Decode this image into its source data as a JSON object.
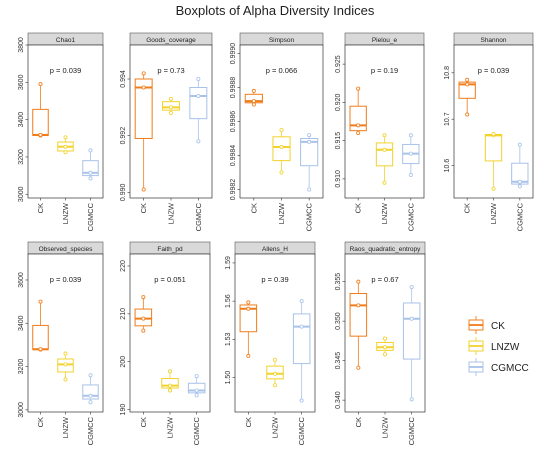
{
  "title": "Boxplots of Alpha Diversity Indices",
  "legend": {
    "placement": "right",
    "items": [
      {
        "label": "CK",
        "color": "#F07C1A"
      },
      {
        "label": "LNZW",
        "color": "#F2D22C"
      },
      {
        "label": "CGMCC",
        "color": "#A8C2EA"
      }
    ]
  },
  "chart_data": [
    {
      "type": "box",
      "title": "Chao1",
      "pvalue": "p = 0.039",
      "categories": [
        "CK",
        "LNZW",
        "CGMCC"
      ],
      "ylim": [
        2980,
        3800
      ],
      "yticks": [
        3000,
        3200,
        3400,
        3600,
        3800
      ],
      "tick_labels": [
        "3000",
        "3200",
        "3400",
        "3600",
        "3800"
      ],
      "boxes": [
        {
          "min": 3315,
          "q1": 3315,
          "median": 3318,
          "q3": 3455,
          "max": 3590,
          "points": [
            3315,
            3318,
            3590
          ]
        },
        {
          "min": 3225,
          "q1": 3232,
          "median": 3255,
          "q3": 3280,
          "max": 3305,
          "points": [
            3225,
            3255,
            3305
          ]
        },
        {
          "min": 3085,
          "q1": 3100,
          "median": 3115,
          "q3": 3180,
          "max": 3235,
          "points": [
            3085,
            3115,
            3235
          ]
        }
      ]
    },
    {
      "type": "box",
      "title": "Goods_coverage",
      "pvalue": "p = 0.73",
      "categories": [
        "CK",
        "LNZW",
        "CGMCC"
      ],
      "ylim": [
        0.9898,
        0.9952
      ],
      "yticks": [
        0.99,
        0.992,
        0.994
      ],
      "tick_labels": [
        "0.990",
        "0.992",
        "0.994"
      ],
      "boxes": [
        {
          "min": 0.9901,
          "q1": 0.9919,
          "median": 0.9937,
          "q3": 0.994,
          "max": 0.9942,
          "points": [
            0.9901,
            0.9937,
            0.9942
          ]
        },
        {
          "min": 0.9928,
          "q1": 0.9929,
          "median": 0.993,
          "q3": 0.9932,
          "max": 0.9933,
          "points": [
            0.9928,
            0.993,
            0.9933
          ]
        },
        {
          "min": 0.9918,
          "q1": 0.9926,
          "median": 0.9934,
          "q3": 0.9937,
          "max": 0.994,
          "points": [
            0.9918,
            0.9934,
            0.994
          ]
        }
      ]
    },
    {
      "type": "box",
      "title": "Simpson",
      "pvalue": "p = 0.066",
      "categories": [
        "CK",
        "LNZW",
        "CGMCC"
      ],
      "ylim": [
        0.99815,
        0.99905
      ],
      "yticks": [
        0.9982,
        0.9984,
        0.9986,
        0.9988,
        0.999
      ],
      "tick_labels": [
        "0.9982",
        "0.9984",
        "0.9986",
        "0.9988",
        "0.9990"
      ],
      "boxes": [
        {
          "min": 0.9987,
          "q1": 0.99871,
          "median": 0.99872,
          "q3": 0.99876,
          "max": 0.99878,
          "points": [
            0.9987,
            0.99872,
            0.99878
          ]
        },
        {
          "min": 0.9983,
          "q1": 0.99837,
          "median": 0.99845,
          "q3": 0.99851,
          "max": 0.99855,
          "points": [
            0.9983,
            0.99845,
            0.99855
          ]
        },
        {
          "min": 0.9982,
          "q1": 0.99834,
          "median": 0.99848,
          "q3": 0.9985,
          "max": 0.99852,
          "points": [
            0.9982,
            0.99848,
            0.99852
          ]
        }
      ]
    },
    {
      "type": "box",
      "title": "Pielou_e",
      "pvalue": "p = 0.19",
      "categories": [
        "CK",
        "LNZW",
        "CGMCC"
      ],
      "ylim": [
        0.9075,
        0.9275
      ],
      "yticks": [
        0.91,
        0.915,
        0.92,
        0.925
      ],
      "tick_labels": [
        "0.910",
        "0.915",
        "0.920",
        "0.925"
      ],
      "boxes": [
        {
          "min": 0.916,
          "q1": 0.9163,
          "median": 0.917,
          "q3": 0.9195,
          "max": 0.9218,
          "points": [
            0.916,
            0.917,
            0.9218
          ]
        },
        {
          "min": 0.9095,
          "q1": 0.9117,
          "median": 0.9138,
          "q3": 0.9147,
          "max": 0.9157,
          "points": [
            0.9095,
            0.9138,
            0.9157
          ]
        },
        {
          "min": 0.9105,
          "q1": 0.912,
          "median": 0.9133,
          "q3": 0.9145,
          "max": 0.9157,
          "points": [
            0.9105,
            0.9133,
            0.9157
          ]
        }
      ]
    },
    {
      "type": "box",
      "title": "Shannon",
      "pvalue": "p = 0.039",
      "categories": [
        "CK",
        "LNZW",
        "CGMCC"
      ],
      "ylim": [
        10.53,
        10.86
      ],
      "yticks": [
        10.6,
        10.7,
        10.8
      ],
      "tick_labels": [
        "10.6",
        "10.7",
        "10.8"
      ],
      "boxes": [
        {
          "min": 10.71,
          "q1": 10.745,
          "median": 10.775,
          "q3": 10.78,
          "max": 10.785,
          "points": [
            10.71,
            10.775,
            10.785
          ]
        },
        {
          "min": 10.55,
          "q1": 10.61,
          "median": 10.665,
          "q3": 10.667,
          "max": 10.668,
          "points": [
            10.55,
            10.665,
            10.668
          ]
        },
        {
          "min": 10.555,
          "q1": 10.56,
          "median": 10.565,
          "q3": 10.605,
          "max": 10.645,
          "points": [
            10.555,
            10.565,
            10.645
          ]
        }
      ]
    },
    {
      "type": "box",
      "title": "Observed_species",
      "pvalue": "p = 0.039",
      "categories": [
        "CK",
        "LNZW",
        "CGMCC"
      ],
      "ylim": [
        2990,
        3720
      ],
      "yticks": [
        3000,
        3200,
        3400,
        3600
      ],
      "tick_labels": [
        "3000",
        "3200",
        "3400",
        "3600"
      ],
      "boxes": [
        {
          "min": 3278,
          "q1": 3278,
          "median": 3280,
          "q3": 3390,
          "max": 3500,
          "points": [
            3278,
            3280,
            3500
          ]
        },
        {
          "min": 3140,
          "q1": 3175,
          "median": 3210,
          "q3": 3235,
          "max": 3260,
          "points": [
            3140,
            3210,
            3260
          ]
        },
        {
          "min": 3035,
          "q1": 3050,
          "median": 3065,
          "q3": 3115,
          "max": 3160,
          "points": [
            3035,
            3065,
            3160
          ]
        }
      ]
    },
    {
      "type": "box",
      "title": "Faith_pd",
      "pvalue": "p = 0.051",
      "categories": [
        "CK",
        "LNZW",
        "CGMCC"
      ],
      "ylim": [
        189.5,
        222.5
      ],
      "yticks": [
        190,
        200,
        210,
        220
      ],
      "tick_labels": [
        "190",
        "200",
        "210",
        "220"
      ],
      "boxes": [
        {
          "min": 206.5,
          "q1": 207.5,
          "median": 209.0,
          "q3": 211.0,
          "max": 213.5,
          "points": [
            206.5,
            209.0,
            213.5
          ]
        },
        {
          "min": 194.0,
          "q1": 194.5,
          "median": 195.0,
          "q3": 196.5,
          "max": 198.0,
          "points": [
            194.0,
            195.0,
            198.0
          ]
        },
        {
          "min": 193.0,
          "q1": 193.5,
          "median": 194.0,
          "q3": 195.5,
          "max": 197.0,
          "points": [
            193.0,
            194.0,
            197.0
          ]
        }
      ]
    },
    {
      "type": "box",
      "title": "Allens_H",
      "pvalue": "p = 0.39",
      "categories": [
        "CK",
        "LNZW",
        "CGMCC"
      ],
      "ylim": [
        1.473,
        1.597
      ],
      "yticks": [
        1.5,
        1.53,
        1.56,
        1.59
      ],
      "tick_labels": [
        "1.50",
        "1.53",
        "1.56",
        "1.59"
      ],
      "boxes": [
        {
          "min": 1.517,
          "q1": 1.536,
          "median": 1.554,
          "q3": 1.557,
          "max": 1.559,
          "points": [
            1.517,
            1.554,
            1.559
          ]
        },
        {
          "min": 1.494,
          "q1": 1.499,
          "median": 1.503,
          "q3": 1.509,
          "max": 1.514,
          "points": [
            1.494,
            1.503,
            1.514
          ]
        },
        {
          "min": 1.482,
          "q1": 1.511,
          "median": 1.54,
          "q3": 1.55,
          "max": 1.56,
          "points": [
            1.482,
            1.54,
            1.56
          ]
        }
      ]
    },
    {
      "type": "box",
      "title": "Raos_quadratic_entropy",
      "pvalue": "p = 0.67",
      "categories": [
        "CK",
        "LNZW",
        "CGMCC"
      ],
      "ylim": [
        0.3385,
        0.3585
      ],
      "yticks": [
        0.34,
        0.345,
        0.35,
        0.355
      ],
      "tick_labels": [
        "0.340",
        "0.345",
        "0.350",
        "0.355"
      ],
      "boxes": [
        {
          "min": 0.3441,
          "q1": 0.3481,
          "median": 0.352,
          "q3": 0.3535,
          "max": 0.355,
          "points": [
            0.3441,
            0.352,
            0.355
          ]
        },
        {
          "min": 0.3458,
          "q1": 0.3463,
          "median": 0.3467,
          "q3": 0.3473,
          "max": 0.3478,
          "points": [
            0.3458,
            0.3467,
            0.3478
          ]
        },
        {
          "min": 0.3401,
          "q1": 0.3452,
          "median": 0.3503,
          "q3": 0.3523,
          "max": 0.3543,
          "points": [
            0.3401,
            0.3503,
            0.3543
          ]
        }
      ]
    }
  ]
}
